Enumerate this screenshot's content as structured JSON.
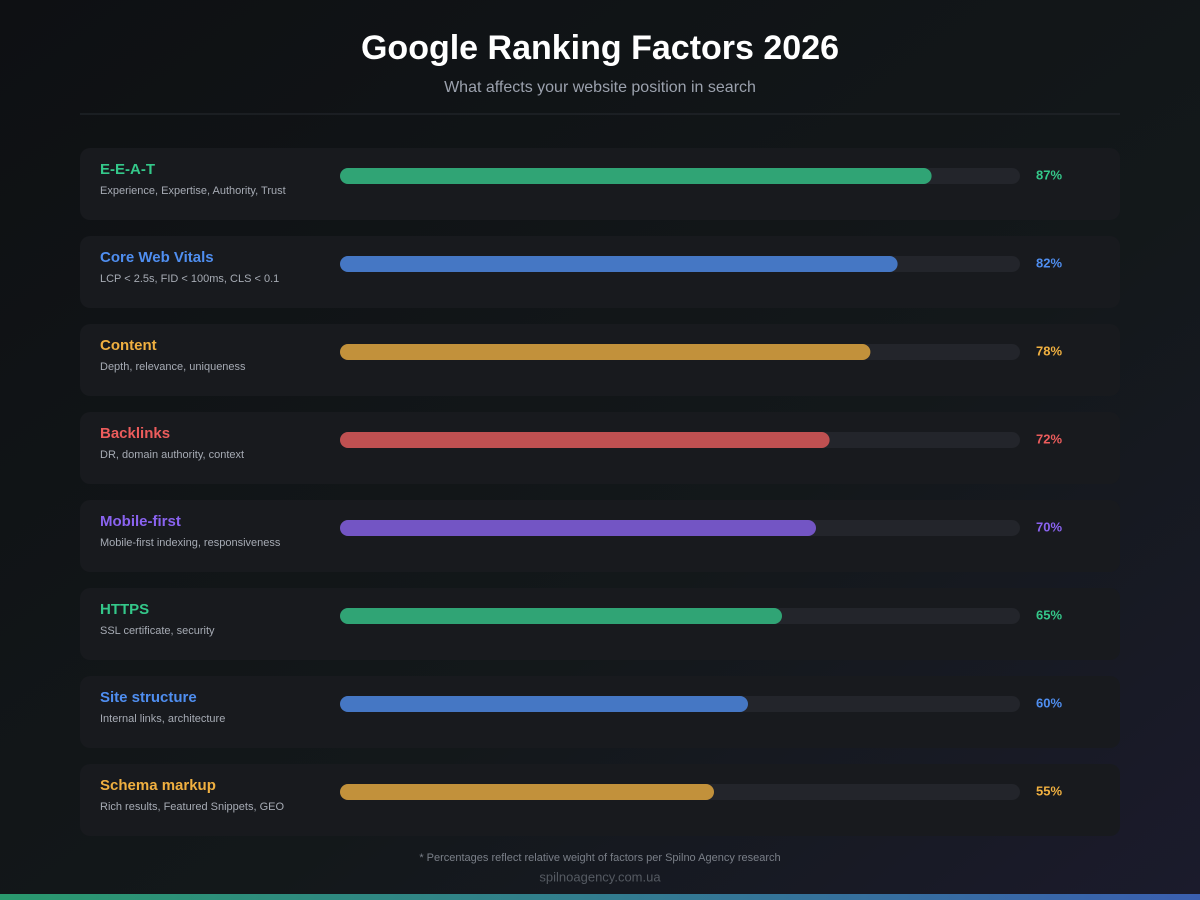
{
  "chart_data": {
    "type": "bar",
    "title": "Google Ranking Factors 2026",
    "subtitle": "What affects your website position in search",
    "categories": [
      "E-E-A-T",
      "Core Web Vitals",
      "Content",
      "Backlinks",
      "Mobile-first",
      "HTTPS",
      "Site structure",
      "Schema markup"
    ],
    "descriptions": [
      "Experience, Expertise, Authority, Trust",
      "LCP < 2.5s, FID < 100ms, CLS < 0.1",
      "Depth, relevance, uniqueness",
      "DR, domain authority, context",
      "Mobile-first indexing, responsiveness",
      "SSL certificate, security",
      "Internal links, architecture",
      "Rich results, Featured Snippets, GEO"
    ],
    "values": [
      87,
      82,
      78,
      72,
      70,
      65,
      60,
      55
    ],
    "value_labels": [
      "87%",
      "82%",
      "78%",
      "72%",
      "70%",
      "65%",
      "60%",
      "55%"
    ],
    "colors": [
      "#34c88a",
      "#4f8ef0",
      "#f0b040",
      "#ec5c5c",
      "#8a63f0",
      "#34c88a",
      "#4f8ef0",
      "#f0b040"
    ],
    "xlim": [
      0,
      100
    ],
    "footnote": "* Percentages reflect relative weight of factors per Spilno Agency research",
    "source": "spilnoagency.com.ua"
  }
}
